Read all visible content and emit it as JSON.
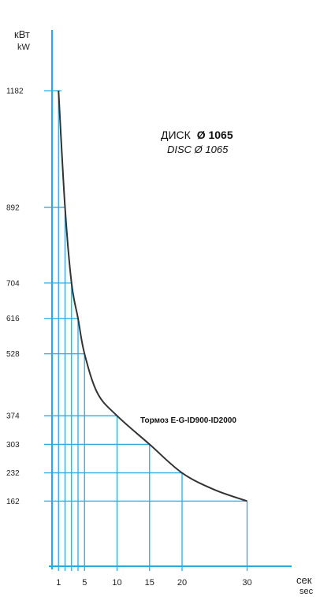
{
  "chart_data": {
    "type": "line",
    "title": "",
    "ylabel": "кВт",
    "ylabel_en": "kW",
    "xlabel": "сек",
    "xlabel_en": "sec",
    "x_ticks": [
      1,
      5,
      10,
      15,
      20,
      30
    ],
    "y_ticks": [
      162,
      232,
      303,
      374,
      528,
      616,
      704,
      892,
      1182
    ],
    "y_tick_labels": [
      "162",
      "232",
      "303",
      "374",
      "528",
      "616",
      "704",
      "892",
      "1182"
    ],
    "xlim": [
      0,
      32
    ],
    "ylim": [
      0,
      1182
    ],
    "series": [
      {
        "name": "Тормоз E-G-ID900-ID2000",
        "color": "#333333",
        "x": [
          1,
          2,
          3,
          4,
          5,
          7,
          10,
          15,
          20,
          25,
          30
        ],
        "y": [
          1182,
          892,
          704,
          616,
          528,
          430,
          374,
          303,
          232,
          190,
          162
        ]
      }
    ],
    "annotations": {
      "disc_ru_prefix": "ДИСК",
      "disc_ru_value": "Ø 1065",
      "disc_en": "DISC Ø 1065"
    },
    "grid": true,
    "grid_color": "#29abe2",
    "curve_color": "#333333"
  }
}
